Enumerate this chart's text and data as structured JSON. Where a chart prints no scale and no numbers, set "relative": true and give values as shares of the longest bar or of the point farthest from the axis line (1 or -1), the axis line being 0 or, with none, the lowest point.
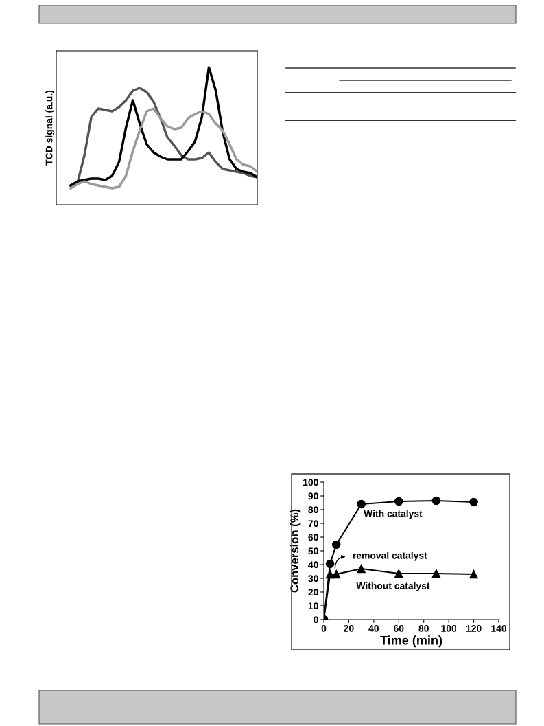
{
  "chart_data": [
    {
      "type": "line",
      "ylabel": "TCD signal (a.u.)",
      "relative": true,
      "grid": false,
      "legend": false,
      "categories": [
        null,
        null,
        null,
        null,
        null,
        null,
        null,
        null,
        null,
        null,
        null,
        null,
        null,
        null,
        null,
        null,
        null,
        null,
        null,
        null,
        null,
        null,
        null,
        null,
        null,
        null,
        null,
        null
      ],
      "series": [
        {
          "color": "#555555",
          "values": [
            0.14,
            0.16,
            0.36,
            0.64,
            0.7,
            0.69,
            0.68,
            0.71,
            0.76,
            0.83,
            0.85,
            0.82,
            0.75,
            0.63,
            0.49,
            0.43,
            0.36,
            0.33,
            0.33,
            0.34,
            0.38,
            0.31,
            0.26,
            0.25,
            0.24,
            0.23,
            0.21,
            0.2
          ]
        },
        {
          "color": "#000000",
          "values": [
            0.14,
            0.17,
            0.18,
            0.19,
            0.19,
            0.18,
            0.21,
            0.31,
            0.56,
            0.76,
            0.59,
            0.44,
            0.38,
            0.35,
            0.33,
            0.33,
            0.33,
            0.39,
            0.46,
            0.64,
            1.0,
            0.83,
            0.53,
            0.33,
            0.26,
            0.24,
            0.23,
            0.2
          ]
        },
        {
          "color": "#999999",
          "values": [
            0.12,
            0.15,
            0.17,
            0.15,
            0.14,
            0.13,
            0.12,
            0.13,
            0.21,
            0.39,
            0.54,
            0.68,
            0.7,
            0.63,
            0.57,
            0.55,
            0.56,
            0.63,
            0.66,
            0.68,
            0.66,
            0.59,
            0.54,
            0.44,
            0.33,
            0.29,
            0.28,
            0.24
          ]
        }
      ]
    },
    {
      "type": "line",
      "xlabel": "Time (min)",
      "ylabel": "Conversion (%)",
      "grid": false,
      "legend": false,
      "xlim": [
        0,
        140
      ],
      "xticks": [
        0,
        20,
        40,
        60,
        80,
        100,
        120,
        140
      ],
      "ylim": [
        0,
        100
      ],
      "yticks": [
        0,
        10,
        20,
        30,
        40,
        50,
        60,
        70,
        80,
        90,
        100
      ],
      "series": [
        {
          "name": "With catalyst",
          "color": "#000000",
          "marker": "circle",
          "x": [
            0,
            5,
            10,
            30,
            60,
            90,
            120
          ],
          "values": [
            0,
            40.5,
            54.5,
            84,
            86,
            86.5,
            85.5
          ]
        },
        {
          "name": "Without catalyst",
          "color": "#000000",
          "marker": "triangle",
          "x": [
            0,
            5,
            10,
            30,
            60,
            90,
            120
          ],
          "values": [
            0,
            33,
            33,
            37,
            33.5,
            33.5,
            33
          ]
        }
      ],
      "annotations": [
        {
          "text": "removal catalyst",
          "x": 10,
          "y": 33
        }
      ]
    }
  ]
}
